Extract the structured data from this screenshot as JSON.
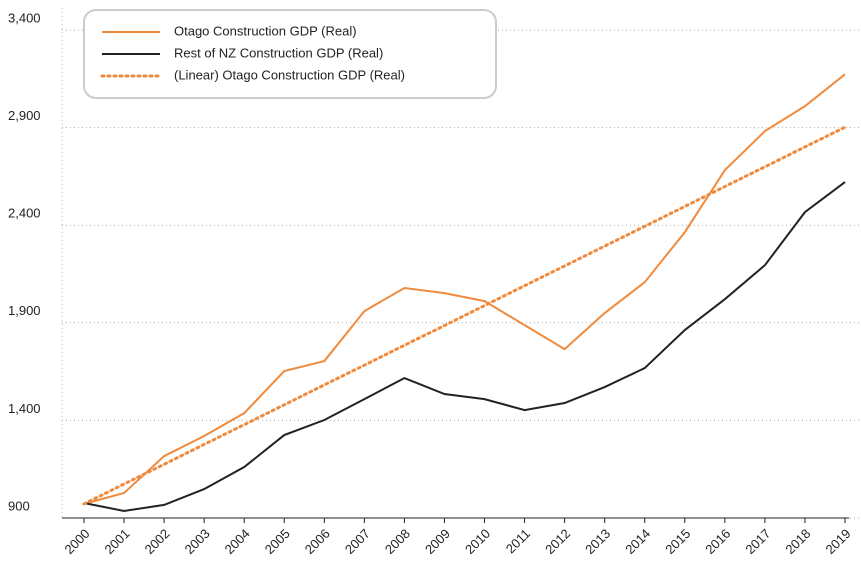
{
  "chart_data": {
    "type": "line",
    "categories": [
      "2000",
      "2001",
      "2002",
      "2003",
      "2004",
      "2005",
      "2006",
      "2007",
      "2008",
      "2009",
      "2010",
      "2011",
      "2012",
      "2013",
      "2014",
      "2015",
      "2016",
      "2017",
      "2018",
      "2019"
    ],
    "series": [
      {
        "name": "Otago Construction GDP (Real)",
        "color": "#f08a3c",
        "dash": "solid",
        "values": [
          972,
          1028,
          1217,
          1320,
          1437,
          1653,
          1704,
          1960,
          2078,
          2052,
          2011,
          1888,
          1765,
          1950,
          2108,
          2364,
          2682,
          2882,
          3010,
          3173
        ]
      },
      {
        "name": "Rest of NZ Construction GDP (Real)",
        "color": "#222222",
        "dash": "solid",
        "values": [
          977,
          936,
          967,
          1048,
          1161,
          1325,
          1402,
          1509,
          1617,
          1535,
          1509,
          1453,
          1489,
          1571,
          1668,
          1863,
          2021,
          2195,
          2467,
          2621
        ]
      },
      {
        "name": "(Linear) Otago Construction GDP (Real)",
        "color": "#f08a3c",
        "dash": "dotted",
        "values": [
          972,
          1074,
          1175,
          1277,
          1378,
          1480,
          1582,
          1683,
          1785,
          1886,
          1988,
          2090,
          2191,
          2293,
          2394,
          2496,
          2598,
          2699,
          2801,
          2902
        ]
      }
    ],
    "ylim": [
      900,
      3400
    ],
    "yticks": [
      900,
      {
        "value": 1400,
        "label": "1,400"
      },
      {
        "value": 1900,
        "label": "1,900"
      },
      {
        "value": 2400,
        "label": "2,400"
      },
      {
        "value": 2900,
        "label": "2,900"
      },
      {
        "value": 3400,
        "label": "3,400"
      }
    ],
    "grid": true,
    "legend": "top-left"
  }
}
